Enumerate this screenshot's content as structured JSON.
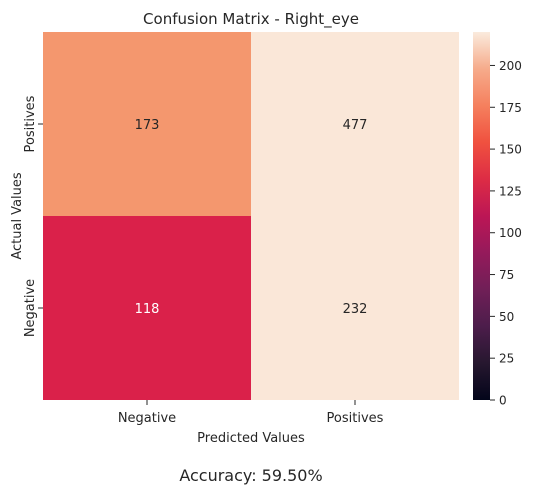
{
  "chart_data": {
    "type": "heatmap",
    "title": "Confusion Matrix - Right_eye",
    "xlabel": "Predicted Values",
    "ylabel": "Actual Values",
    "x_categories": [
      "Negative",
      "Positives"
    ],
    "y_categories": [
      "Positives",
      "Negative"
    ],
    "values": [
      [
        173,
        477
      ],
      [
        118,
        232
      ]
    ],
    "colorbar": {
      "vmin": 0,
      "vmax": 220,
      "ticks": [
        "0",
        "25",
        "50",
        "75",
        "100",
        "125",
        "150",
        "175",
        "200"
      ],
      "colormap": "rocket"
    },
    "cell_colors": {
      "173": "#f4976e",
      "477": "#fae7d8",
      "118": "#da214a",
      "232": "#fae7d8"
    },
    "footer": "Accuracy: 59.50%"
  }
}
